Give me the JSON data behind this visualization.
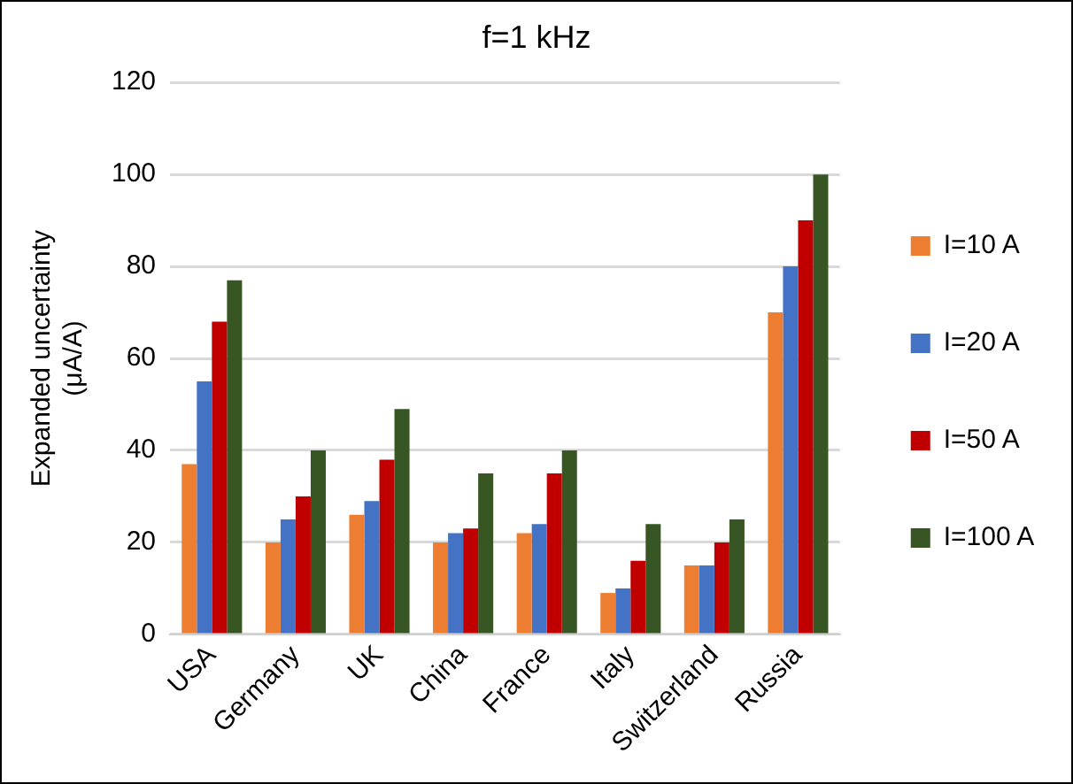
{
  "chart_data": {
    "type": "bar",
    "title": "f=1 kHz",
    "ylabel": "Expanded uncertainty (μA/A)",
    "categories": [
      "USA",
      "Germany",
      "UK",
      "China",
      "France",
      "Italy",
      "Switzerland",
      "Russia"
    ],
    "series": [
      {
        "name": "I=10 A",
        "color": "#ed7d31",
        "values": [
          37,
          20,
          26,
          20,
          22,
          9,
          15,
          70
        ]
      },
      {
        "name": "I=20 A",
        "color": "#4472c4",
        "values": [
          55,
          25,
          29,
          22,
          24,
          10,
          15,
          80
        ]
      },
      {
        "name": "I=50 A",
        "color": "#c00000",
        "values": [
          68,
          30,
          38,
          23,
          35,
          16,
          20,
          90
        ]
      },
      {
        "name": "I=100 A",
        "color": "#375623",
        "values": [
          77,
          40,
          49,
          35,
          40,
          24,
          25,
          100
        ]
      }
    ],
    "ylim": [
      0,
      120
    ],
    "yticks": [
      0,
      20,
      40,
      60,
      80,
      100,
      120
    ],
    "grid": "y",
    "legend": "right"
  }
}
